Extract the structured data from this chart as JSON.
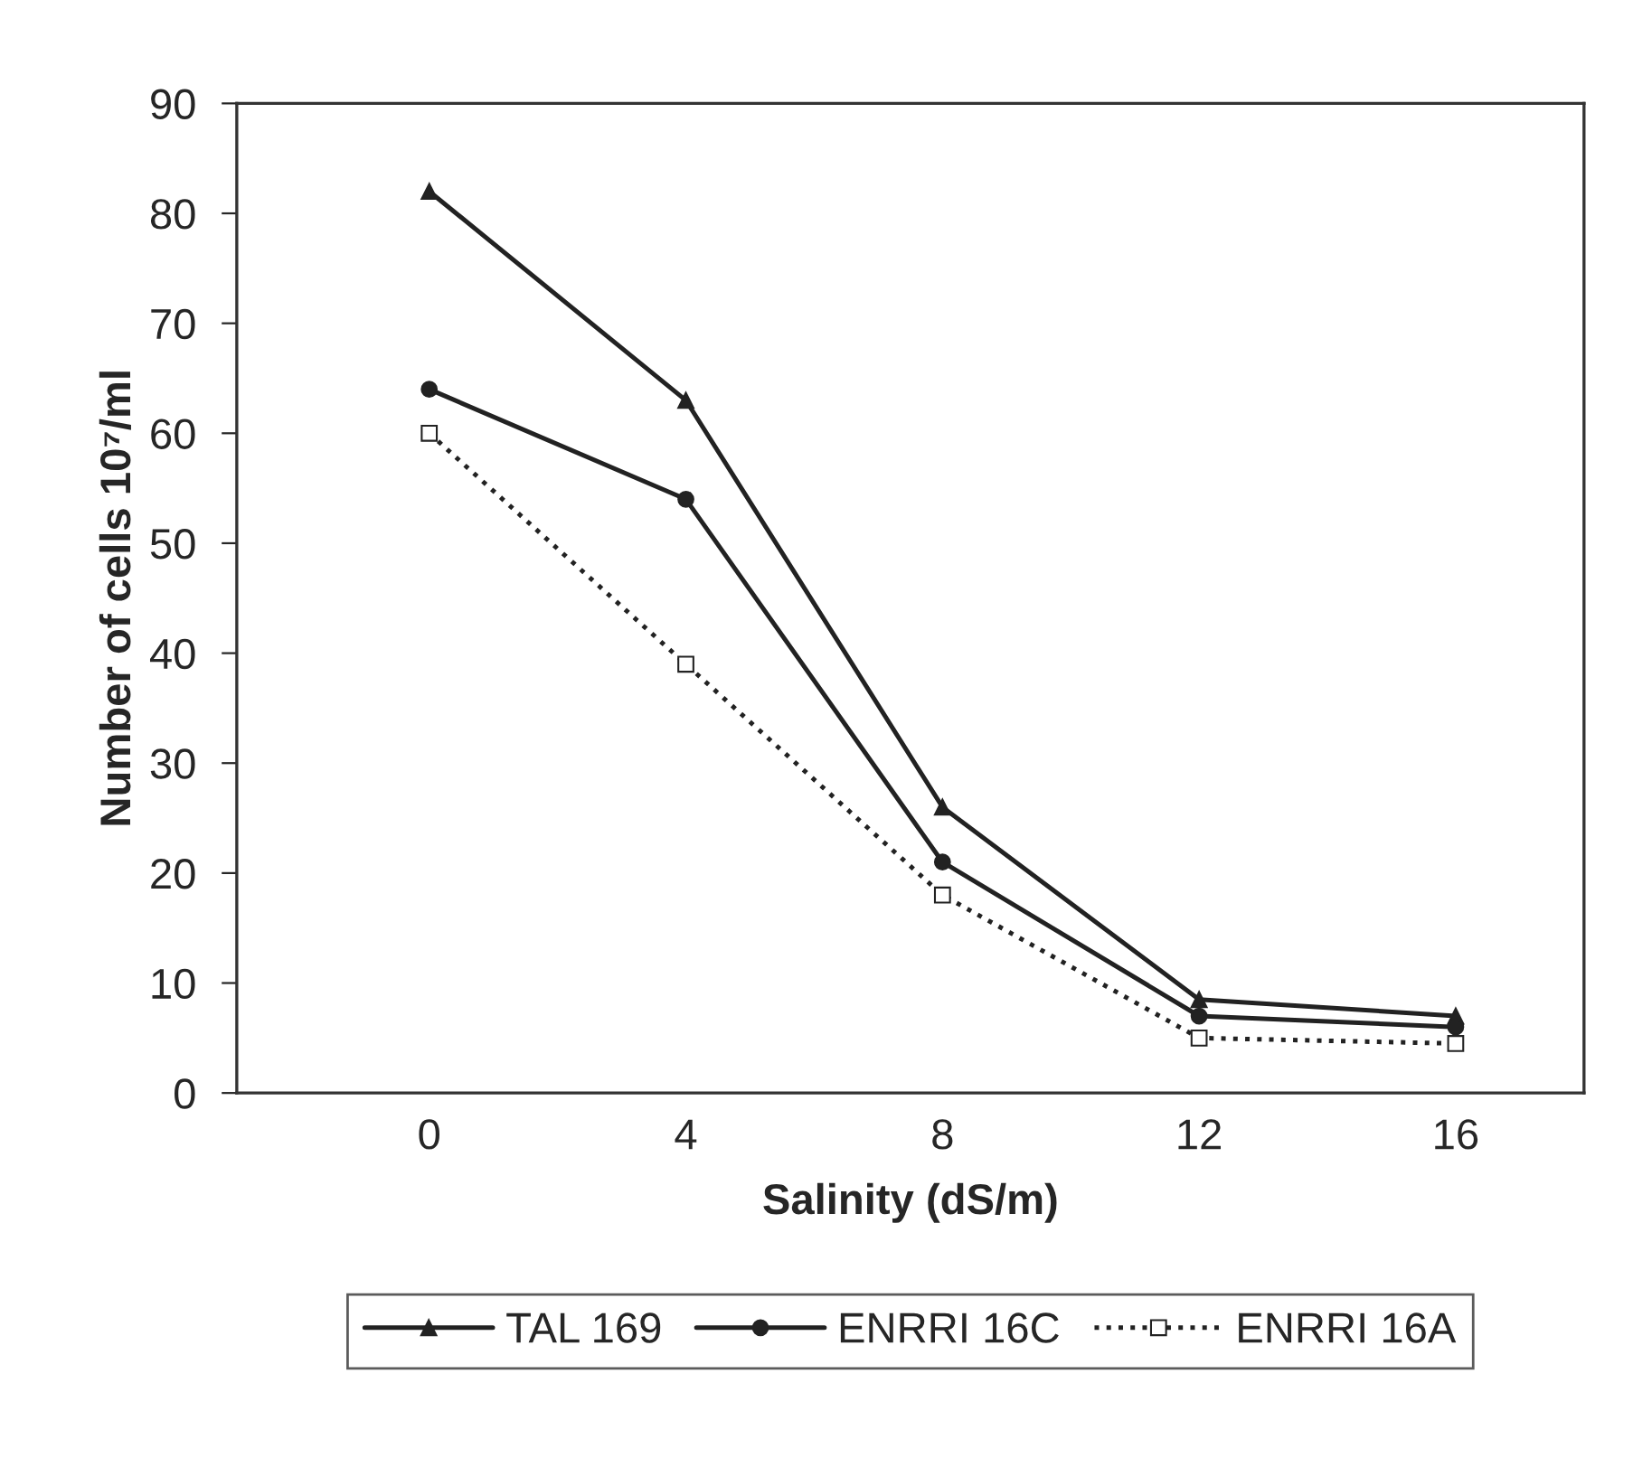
{
  "chart_data": {
    "type": "line",
    "xlabel": "Salinity (dS/m)",
    "ylabel": "Number of cells 10⁷/ml",
    "x": [
      0,
      4,
      8,
      12,
      16
    ],
    "xlim": [
      -3,
      18
    ],
    "xticks": [
      0,
      4,
      8,
      12,
      16
    ],
    "ylim": [
      0,
      90
    ],
    "yticks": [
      0,
      10,
      20,
      30,
      40,
      50,
      60,
      70,
      80,
      90
    ],
    "grid": false,
    "legend": "bottom",
    "series": [
      {
        "name": "TAL 169",
        "color": "#222222",
        "marker": "triangle",
        "line_style": "solid",
        "values": [
          82,
          63,
          26,
          8.5,
          7
        ]
      },
      {
        "name": "ENRRI 16C",
        "color": "#222222",
        "marker": "circle",
        "line_style": "solid",
        "values": [
          64,
          54,
          21,
          7,
          6
        ]
      },
      {
        "name": "ENRRI 16A",
        "color": "#222222",
        "marker": "square",
        "line_style": "dotted",
        "values": [
          60,
          39,
          18,
          5,
          4.5
        ]
      }
    ]
  }
}
